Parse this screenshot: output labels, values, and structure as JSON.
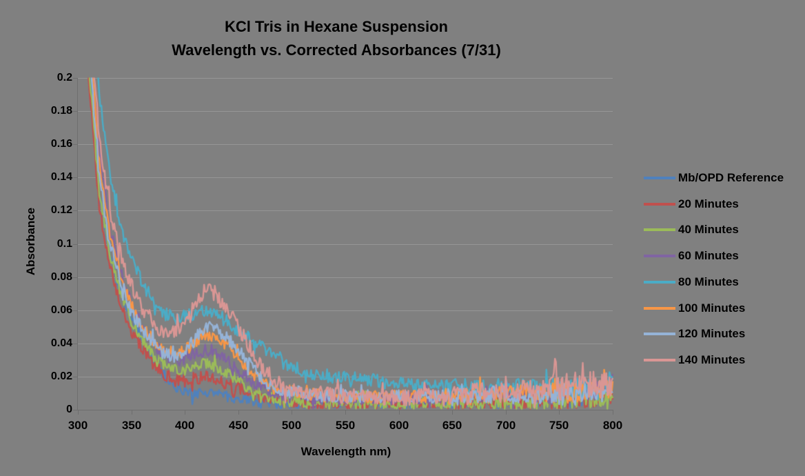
{
  "window": {
    "background_color": "#808080"
  },
  "title": {
    "line1": "KCl Tris in Hexane Suspension",
    "line2": "Wavelength vs. Corrected Absorbances (7/31)"
  },
  "axes": {
    "y": {
      "title": "Absorbance",
      "tick_labels": [
        "0.2",
        "0.18",
        "0.16",
        "0.14",
        "0.12",
        "0.1",
        "0.08",
        "0.06",
        "0.04",
        "0.02",
        "0"
      ],
      "min": 0,
      "max": 0.2,
      "step": 0.02
    },
    "x": {
      "title": "Wavelength nm)",
      "tick_labels": [
        "300",
        "350",
        "400",
        "450",
        "500",
        "550",
        "600",
        "650",
        "700",
        "750",
        "800"
      ],
      "min": 300,
      "max": 800,
      "step": 50
    }
  },
  "colors": {
    "background": "#808080",
    "gridline": "#969696",
    "axis": "#6e6e6e",
    "text": "#000000"
  },
  "chart_data": {
    "type": "line",
    "title": "KCl Tris in Hexane Suspension",
    "subtitle": "Wavelength vs. Corrected Absorbances (7/31)",
    "xlabel": "Wavelength nm)",
    "ylabel": "Absorbance",
    "xlim": [
      300,
      800
    ],
    "ylim": [
      0,
      0.2
    ],
    "grid": "horizontal",
    "legend_position": "right",
    "x": [
      300,
      310,
      315,
      320,
      330,
      340,
      350,
      360,
      370,
      380,
      390,
      400,
      410,
      420,
      430,
      440,
      450,
      460,
      470,
      480,
      490,
      500,
      520,
      550,
      600,
      650,
      700,
      720,
      740,
      745,
      750,
      780,
      800
    ],
    "series": [
      {
        "name": "Mb/OPD Reference",
        "color": "#4F81BD",
        "noise": 0.0032,
        "values": [
          0.32,
          0.215,
          0.175,
          0.13,
          0.094,
          0.072,
          0.055,
          0.042,
          0.031,
          0.021,
          0.014,
          0.011,
          0.01,
          0.011,
          0.01,
          0.008,
          0.007,
          0.005,
          0.005,
          0.004,
          0.004,
          0.004,
          0.004,
          0.004,
          0.004,
          0.005,
          0.006,
          0.006,
          0.006,
          0.006,
          0.006,
          0.008,
          0.01
        ]
      },
      {
        "name": "20 Minutes",
        "color": "#C0504D",
        "noise": 0.0038,
        "values": [
          0.3,
          0.2,
          0.163,
          0.122,
          0.086,
          0.064,
          0.048,
          0.037,
          0.028,
          0.022,
          0.018,
          0.017,
          0.019,
          0.02,
          0.018,
          0.015,
          0.013,
          0.01,
          0.008,
          0.006,
          0.005,
          0.005,
          0.004,
          0.004,
          0.004,
          0.005,
          0.005,
          0.006,
          0.006,
          0.006,
          0.006,
          0.008,
          0.01
        ]
      },
      {
        "name": "40 Minutes",
        "color": "#9BBB59",
        "noise": 0.0034,
        "values": [
          0.31,
          0.21,
          0.17,
          0.13,
          0.094,
          0.071,
          0.054,
          0.042,
          0.033,
          0.027,
          0.024,
          0.024,
          0.026,
          0.028,
          0.026,
          0.022,
          0.018,
          0.013,
          0.01,
          0.007,
          0.006,
          0.005,
          0.004,
          0.004,
          0.004,
          0.004,
          0.004,
          0.005,
          0.005,
          0.005,
          0.005,
          0.007,
          0.009
        ]
      },
      {
        "name": "60 Minutes",
        "color": "#8064A2",
        "noise": 0.004,
        "values": [
          0.36,
          0.245,
          0.196,
          0.155,
          0.11,
          0.083,
          0.064,
          0.05,
          0.04,
          0.033,
          0.03,
          0.031,
          0.034,
          0.037,
          0.034,
          0.029,
          0.024,
          0.018,
          0.014,
          0.011,
          0.009,
          0.008,
          0.007,
          0.007,
          0.007,
          0.008,
          0.011,
          0.01,
          0.009,
          0.009,
          0.009,
          0.012,
          0.017
        ]
      },
      {
        "name": "80 Minutes",
        "color": "#4BACC6",
        "noise": 0.0042,
        "values": [
          0.42,
          0.29,
          0.235,
          0.19,
          0.14,
          0.11,
          0.092,
          0.077,
          0.066,
          0.058,
          0.055,
          0.056,
          0.058,
          0.06,
          0.057,
          0.053,
          0.048,
          0.043,
          0.039,
          0.033,
          0.029,
          0.026,
          0.022,
          0.019,
          0.016,
          0.013,
          0.013,
          0.013,
          0.012,
          0.012,
          0.012,
          0.014,
          0.017
        ]
      },
      {
        "name": "100 Minutes",
        "color": "#F79646",
        "noise": 0.0038,
        "values": [
          0.35,
          0.24,
          0.19,
          0.148,
          0.106,
          0.081,
          0.063,
          0.051,
          0.042,
          0.036,
          0.034,
          0.036,
          0.041,
          0.046,
          0.043,
          0.038,
          0.032,
          0.024,
          0.018,
          0.014,
          0.012,
          0.011,
          0.009,
          0.008,
          0.008,
          0.008,
          0.009,
          0.011,
          0.01,
          0.01,
          0.01,
          0.012,
          0.014
        ]
      },
      {
        "name": "120 Minutes",
        "color": "#95B3D7",
        "noise": 0.004,
        "values": [
          0.33,
          0.225,
          0.18,
          0.14,
          0.1,
          0.077,
          0.06,
          0.048,
          0.04,
          0.034,
          0.032,
          0.035,
          0.043,
          0.051,
          0.048,
          0.043,
          0.037,
          0.028,
          0.02,
          0.015,
          0.012,
          0.011,
          0.009,
          0.008,
          0.008,
          0.008,
          0.009,
          0.009,
          0.009,
          0.009,
          0.009,
          0.01,
          0.012
        ]
      },
      {
        "name": "140 Minutes",
        "color": "#D99694",
        "noise": 0.0048,
        "values": [
          0.38,
          0.26,
          0.205,
          0.165,
          0.12,
          0.093,
          0.075,
          0.062,
          0.053,
          0.047,
          0.046,
          0.052,
          0.063,
          0.073,
          0.068,
          0.06,
          0.05,
          0.038,
          0.028,
          0.02,
          0.015,
          0.012,
          0.01,
          0.008,
          0.007,
          0.009,
          0.011,
          0.012,
          0.013,
          0.026,
          0.014,
          0.015,
          0.014
        ]
      }
    ]
  }
}
